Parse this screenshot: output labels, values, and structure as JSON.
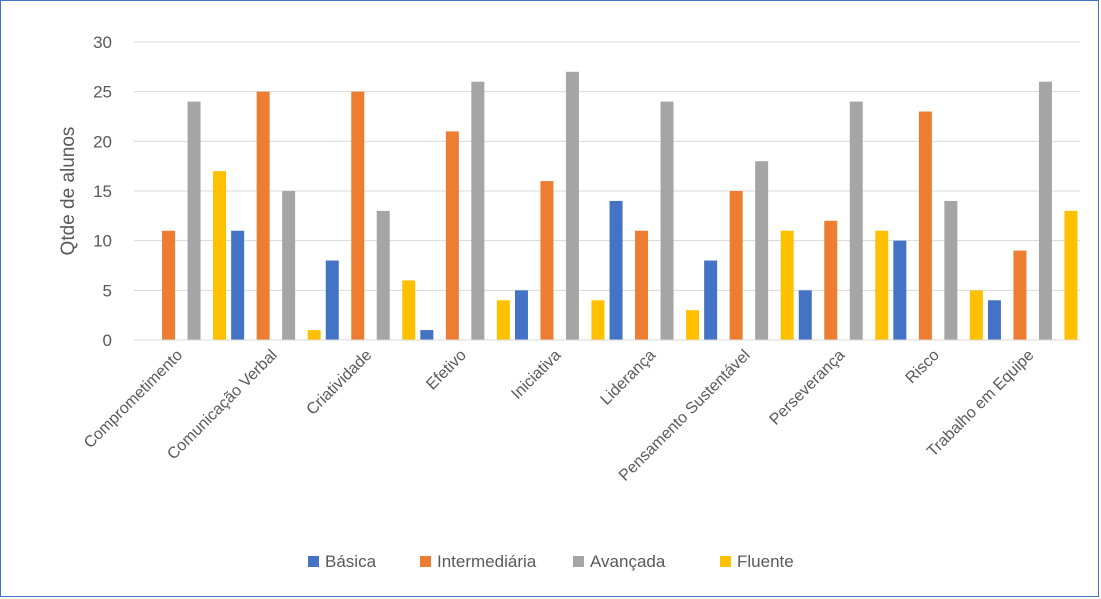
{
  "chart_data": {
    "type": "bar",
    "ylabel": "Qtde de alunos",
    "xlabel": "",
    "ylim": [
      0,
      30
    ],
    "yticks": [
      0,
      5,
      10,
      15,
      20,
      25,
      30
    ],
    "grid": true,
    "legend_position": "bottom",
    "categories": [
      "Comprometimento",
      "Comunicação Verbal",
      "Criatividade",
      "Efetivo",
      "Iniciativa",
      "Liderança",
      "Pensamento Sustentável",
      "Perseverança",
      "Risco",
      "Trabalho em Equipe"
    ],
    "series": [
      {
        "name": "Básica",
        "color": "#4472c4",
        "values": [
          0,
          11,
          8,
          1,
          5,
          14,
          8,
          5,
          10,
          4
        ]
      },
      {
        "name": "Intermediária",
        "color": "#ed7d31",
        "values": [
          11,
          25,
          25,
          21,
          16,
          11,
          15,
          12,
          23,
          9
        ]
      },
      {
        "name": "Avançada",
        "color": "#a5a5a5",
        "values": [
          24,
          15,
          13,
          26,
          27,
          24,
          18,
          24,
          14,
          26
        ]
      },
      {
        "name": "Fluente",
        "color": "#ffc000",
        "values": [
          17,
          1,
          6,
          4,
          4,
          3,
          11,
          11,
          5,
          13
        ]
      }
    ]
  }
}
